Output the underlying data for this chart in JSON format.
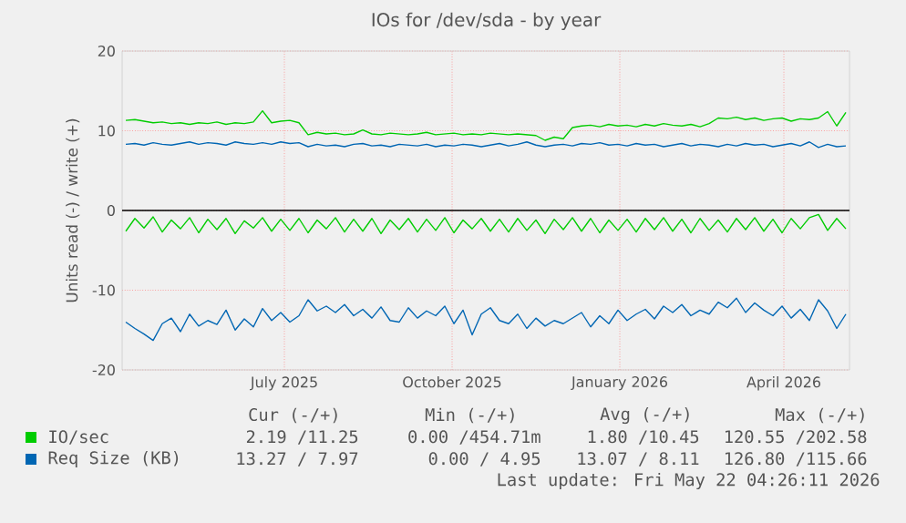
{
  "chart_data": {
    "type": "line",
    "title": "IOs for /dev/sda - by year",
    "ylabel": "Units read (-) / write (+)",
    "xlim": [
      "2025-04-18",
      "2026-05-22"
    ],
    "ylim": [
      -20,
      20
    ],
    "yticks": [
      -20,
      -10,
      0,
      10,
      20
    ],
    "xticks": [
      {
        "value": "2025-07-16",
        "label": "July 2025"
      },
      {
        "value": "2025-10-16",
        "label": "October 2025"
      },
      {
        "value": "2026-01-16",
        "label": "January 2026"
      },
      {
        "value": "2026-04-16",
        "label": "April 2026"
      }
    ],
    "grid": true,
    "legend": "bottom",
    "x": [
      "2025-04-20",
      "2025-04-25",
      "2025-04-30",
      "2025-05-05",
      "2025-05-10",
      "2025-05-15",
      "2025-05-20",
      "2025-05-25",
      "2025-05-30",
      "2025-06-04",
      "2025-06-09",
      "2025-06-14",
      "2025-06-19",
      "2025-06-24",
      "2025-06-29",
      "2025-07-04",
      "2025-07-09",
      "2025-07-14",
      "2025-07-19",
      "2025-07-24",
      "2025-07-29",
      "2025-08-03",
      "2025-08-08",
      "2025-08-13",
      "2025-08-18",
      "2025-08-23",
      "2025-08-28",
      "2025-09-02",
      "2025-09-07",
      "2025-09-12",
      "2025-09-17",
      "2025-09-22",
      "2025-09-27",
      "2025-10-02",
      "2025-10-07",
      "2025-10-12",
      "2025-10-17",
      "2025-10-22",
      "2025-10-27",
      "2025-11-01",
      "2025-11-06",
      "2025-11-11",
      "2025-11-16",
      "2025-11-21",
      "2025-11-26",
      "2025-12-01",
      "2025-12-06",
      "2025-12-11",
      "2025-12-16",
      "2025-12-21",
      "2025-12-26",
      "2025-12-31",
      "2026-01-05",
      "2026-01-10",
      "2026-01-15",
      "2026-01-20",
      "2026-01-25",
      "2026-01-30",
      "2026-02-04",
      "2026-02-09",
      "2026-02-14",
      "2026-02-19",
      "2026-02-24",
      "2026-03-01",
      "2026-03-06",
      "2026-03-11",
      "2026-03-16",
      "2026-03-21",
      "2026-03-26",
      "2026-03-31",
      "2026-04-05",
      "2026-04-10",
      "2026-04-15",
      "2026-04-20",
      "2026-04-25",
      "2026-04-30",
      "2026-05-05",
      "2026-05-10",
      "2026-05-15",
      "2026-05-20"
    ],
    "series": [
      {
        "name": "IO/sec",
        "color": "#00cc00",
        "values": [
          11.3,
          11.4,
          11.2,
          11.0,
          11.1,
          10.9,
          11.0,
          10.8,
          11.0,
          10.9,
          11.1,
          10.8,
          11.0,
          10.9,
          11.1,
          12.5,
          11.0,
          11.2,
          11.3,
          11.0,
          9.5,
          9.8,
          9.6,
          9.7,
          9.5,
          9.6,
          10.1,
          9.6,
          9.5,
          9.7,
          9.6,
          9.5,
          9.6,
          9.8,
          9.5,
          9.6,
          9.7,
          9.5,
          9.6,
          9.5,
          9.7,
          9.6,
          9.5,
          9.6,
          9.5,
          9.4,
          8.8,
          9.2,
          9.0,
          10.4,
          10.6,
          10.7,
          10.5,
          10.8,
          10.6,
          10.7,
          10.5,
          10.8,
          10.6,
          10.9,
          10.7,
          10.6,
          10.8,
          10.5,
          10.9,
          11.6,
          11.5,
          11.7,
          11.4,
          11.6,
          11.3,
          11.5,
          11.6,
          11.2,
          11.5,
          11.4,
          11.6,
          12.4,
          10.6,
          12.3
        ]
      },
      {
        "color": "#00cc00",
        "values": [
          -2.6,
          -1.0,
          -2.2,
          -0.8,
          -2.7,
          -1.2,
          -2.3,
          -0.9,
          -2.8,
          -1.1,
          -2.4,
          -1.0,
          -2.9,
          -1.3,
          -2.2,
          -0.9,
          -2.6,
          -1.1,
          -2.5,
          -1.0,
          -2.8,
          -1.2,
          -2.3,
          -0.9,
          -2.7,
          -1.1,
          -2.6,
          -1.0,
          -2.9,
          -1.2,
          -2.4,
          -1.0,
          -2.7,
          -1.1,
          -2.5,
          -0.9,
          -2.8,
          -1.2,
          -2.3,
          -1.0,
          -2.6,
          -1.1,
          -2.7,
          -1.0,
          -2.5,
          -1.2,
          -2.9,
          -1.1,
          -2.4,
          -0.9,
          -2.6,
          -1.0,
          -2.8,
          -1.2,
          -2.5,
          -1.1,
          -2.7,
          -1.0,
          -2.4,
          -0.9,
          -2.6,
          -1.1,
          -2.8,
          -1.0,
          -2.5,
          -1.2,
          -2.7,
          -1.0,
          -2.4,
          -0.9,
          -2.6,
          -1.1,
          -2.8,
          -1.0,
          -2.3,
          -0.9,
          -0.5,
          -2.5,
          -1.0,
          -2.3
        ]
      },
      {
        "name": "Req Size (KB)",
        "color": "#0066b3",
        "values": [
          8.3,
          8.4,
          8.2,
          8.5,
          8.3,
          8.2,
          8.4,
          8.6,
          8.3,
          8.5,
          8.4,
          8.2,
          8.6,
          8.4,
          8.3,
          8.5,
          8.3,
          8.6,
          8.4,
          8.5,
          8.0,
          8.3,
          8.1,
          8.2,
          8.0,
          8.3,
          8.4,
          8.1,
          8.2,
          8.0,
          8.3,
          8.2,
          8.1,
          8.3,
          8.0,
          8.2,
          8.1,
          8.3,
          8.2,
          8.0,
          8.2,
          8.4,
          8.1,
          8.3,
          8.6,
          8.2,
          8.0,
          8.2,
          8.3,
          8.1,
          8.4,
          8.3,
          8.5,
          8.2,
          8.3,
          8.1,
          8.4,
          8.2,
          8.3,
          8.0,
          8.2,
          8.4,
          8.1,
          8.3,
          8.2,
          8.0,
          8.3,
          8.1,
          8.4,
          8.2,
          8.3,
          8.0,
          8.2,
          8.4,
          8.1,
          8.6,
          7.9,
          8.3,
          8.0,
          8.1
        ]
      },
      {
        "color": "#0066b3",
        "values": [
          -14.0,
          -14.8,
          -15.5,
          -16.3,
          -14.2,
          -13.5,
          -15.2,
          -13.0,
          -14.5,
          -13.8,
          -14.3,
          -12.5,
          -15.0,
          -13.6,
          -14.6,
          -12.3,
          -13.8,
          -12.8,
          -14.0,
          -13.2,
          -11.2,
          -12.6,
          -12.0,
          -12.8,
          -11.8,
          -13.2,
          -12.4,
          -13.5,
          -12.1,
          -13.8,
          -14.0,
          -12.2,
          -13.5,
          -12.6,
          -13.2,
          -12.0,
          -14.2,
          -12.5,
          -15.6,
          -13.0,
          -12.2,
          -13.8,
          -14.2,
          -13.0,
          -14.8,
          -13.5,
          -14.5,
          -13.8,
          -14.2,
          -13.5,
          -12.8,
          -14.6,
          -13.2,
          -14.2,
          -12.5,
          -13.8,
          -13.0,
          -12.4,
          -13.6,
          -12.0,
          -12.8,
          -11.8,
          -13.2,
          -12.5,
          -13.0,
          -11.5,
          -12.2,
          -11.0,
          -12.8,
          -11.6,
          -12.5,
          -13.2,
          -12.0,
          -13.5,
          -12.4,
          -13.8,
          -11.2,
          -12.6,
          -14.8,
          -13.0
        ]
      }
    ],
    "ref_lines": [
      {
        "axis": "y",
        "value": 0,
        "color": "#000000"
      }
    ],
    "annotations": [
      "Cur (-/+)",
      "Min (-/+)",
      "Avg (-/+)",
      "Max (-/+)",
      "2.19 /11.25",
      "0.00 /454.71m",
      "1.80 /10.45",
      "120.55 /202.58",
      "13.27 / 7.97",
      "0.00 / 4.95",
      "13.07 / 8.11",
      "126.80 /115.66",
      "Last update: Fri May 22 04:26:11 2026"
    ]
  }
}
